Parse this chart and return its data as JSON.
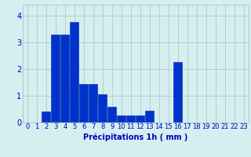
{
  "hours": [
    0,
    1,
    2,
    3,
    4,
    5,
    6,
    7,
    8,
    9,
    10,
    11,
    12,
    13,
    14,
    15,
    16,
    17,
    18,
    19,
    20,
    21,
    22,
    23
  ],
  "values": [
    0.0,
    0.0,
    0.4,
    3.3,
    3.3,
    3.75,
    1.45,
    1.45,
    1.05,
    0.6,
    0.25,
    0.25,
    0.25,
    0.45,
    0.0,
    0.0,
    2.25,
    0.0,
    0.0,
    0.0,
    0.0,
    0.0,
    0.0,
    0.0
  ],
  "bar_color": "#0033cc",
  "bar_edge_color": "#0022aa",
  "background_color": "#d5eef0",
  "grid_color": "#aacccc",
  "xlabel": "Précipitations 1h ( mm )",
  "ylim": [
    0,
    4.4
  ],
  "yticks": [
    0,
    1,
    2,
    3,
    4
  ],
  "text_color": "#0000bb",
  "xlabel_fontsize": 7,
  "tick_fontsize": 6,
  "bar_width": 0.9
}
